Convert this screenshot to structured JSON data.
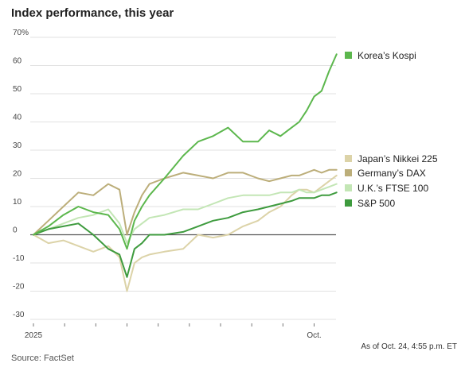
{
  "header": {
    "title": "Index performance, this year"
  },
  "footer": {
    "source": "Source: FactSet",
    "asof": "As of Oct. 24, 4:55 p.m. ET"
  },
  "colors": {
    "kospi": "#5cb74d",
    "nikkei": "#dcd3a8",
    "dax": "#bcae7a",
    "ftse": "#c3e6b5",
    "sp500": "#3e9b3e",
    "zero": "#555555",
    "grid": "#e2e2e2"
  },
  "chart_data": {
    "type": "line",
    "title": "Index performance, this year",
    "xlabel": "",
    "ylabel": "",
    "x_tick_labels": [
      "2025",
      "Oct."
    ],
    "ylim": [
      -30,
      70
    ],
    "y_ticks": [
      -30,
      -20,
      -10,
      0,
      10,
      20,
      30,
      40,
      50,
      60,
      70
    ],
    "y_tick_labels": [
      "-30",
      "-20",
      "-10",
      "0",
      "10",
      "20",
      "30",
      "40",
      "50",
      "60",
      "70%"
    ],
    "grid": true,
    "legend": "right",
    "x_note": "x is fraction of 2025 elapsed (Jan 1 = 0, Oct 24 = 0.81)",
    "x": [
      0.0,
      0.04,
      0.08,
      0.12,
      0.16,
      0.2,
      0.23,
      0.25,
      0.27,
      0.29,
      0.31,
      0.35,
      0.4,
      0.44,
      0.48,
      0.52,
      0.56,
      0.6,
      0.63,
      0.66,
      0.69,
      0.71,
      0.73,
      0.75,
      0.77,
      0.79,
      0.81
    ],
    "series": [
      {
        "name": "Korea's Kospi",
        "color": "#5cb74d",
        "values": [
          0,
          3,
          7,
          10,
          8,
          7,
          2,
          -5,
          5,
          10,
          14,
          20,
          28,
          33,
          35,
          38,
          33,
          33,
          37,
          35,
          38,
          40,
          44,
          49,
          51,
          58,
          64
        ]
      },
      {
        "name": "Japan's Nikkei 225",
        "color": "#dcd3a8",
        "values": [
          0,
          -3,
          -2,
          -4,
          -6,
          -4,
          -8,
          -20,
          -10,
          -8,
          -7,
          -6,
          -5,
          0,
          -1,
          0,
          3,
          5,
          8,
          10,
          14,
          16,
          16,
          15,
          17,
          19,
          21
        ]
      },
      {
        "name": "Germany's DAX",
        "color": "#bcae7a",
        "values": [
          0,
          5,
          10,
          15,
          14,
          18,
          16,
          0,
          8,
          14,
          18,
          20,
          22,
          21,
          20,
          22,
          22,
          20,
          19,
          20,
          21,
          21,
          22,
          23,
          22,
          23,
          23
        ]
      },
      {
        "name": "U.K.'s FTSE 100",
        "color": "#c3e6b5",
        "values": [
          0,
          2,
          4,
          6,
          7,
          9,
          4,
          -3,
          2,
          4,
          6,
          7,
          9,
          9,
          11,
          13,
          14,
          14,
          14,
          15,
          15,
          16,
          15,
          15,
          16,
          17,
          18
        ]
      },
      {
        "name": "S&P 500",
        "color": "#3e9b3e",
        "values": [
          0,
          2,
          3,
          4,
          0,
          -5,
          -7,
          -15,
          -5,
          -3,
          0,
          0,
          1,
          3,
          5,
          6,
          8,
          9,
          10,
          11,
          12,
          13,
          13,
          13,
          14,
          14,
          15
        ]
      }
    ]
  },
  "legend": [
    {
      "label": "Korea’s Kospi",
      "color": "#5cb74d"
    },
    {
      "label": "Japan’s Nikkei 225",
      "color": "#dcd3a8"
    },
    {
      "label": "Germany’s DAX",
      "color": "#bcae7a"
    },
    {
      "label": "U.K.’s FTSE 100",
      "color": "#c3e6b5"
    },
    {
      "label": "S&P 500",
      "color": "#3e9b3e"
    }
  ]
}
